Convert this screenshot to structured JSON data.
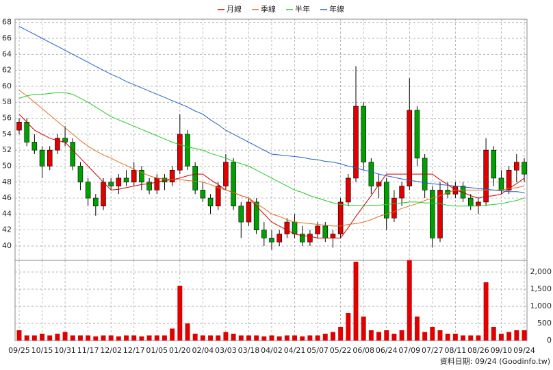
{
  "chart_data": {
    "type": "candlestick",
    "categories": [
      "09/25",
      null,
      null,
      "10/15",
      null,
      null,
      "10/31",
      null,
      null,
      "11/17",
      null,
      null,
      "12/02",
      null,
      null,
      "12/17",
      null,
      null,
      "01/05",
      null,
      null,
      "01/20",
      null,
      null,
      "02/04",
      null,
      null,
      "03/03",
      null,
      null,
      "03/18",
      null,
      null,
      "04/02",
      null,
      null,
      "04/21",
      null,
      null,
      "05/07",
      null,
      null,
      "05/22",
      null,
      null,
      "06/08",
      null,
      null,
      "06/24",
      null,
      null,
      "07/09",
      null,
      null,
      "07/27",
      null,
      null,
      "08/11",
      null,
      null,
      "08/26",
      null,
      null,
      "09/10",
      null,
      null,
      "09/24"
    ],
    "open": [
      54.5,
      55.5,
      53.0,
      52.0,
      50.0,
      52.0,
      53.5,
      53.0,
      50.0,
      48.0,
      46.0,
      45.0,
      48.0,
      47.5,
      48.5,
      48.0,
      49.5,
      48.0,
      47.0,
      48.5,
      48.0,
      49.5,
      54.0,
      50.0,
      47.0,
      46.0,
      45.0,
      47.5,
      50.5,
      45.0,
      43.0,
      45.5,
      42.0,
      41.0,
      40.5,
      41.5,
      43.0,
      41.5,
      40.5,
      41.5,
      42.5,
      41.0,
      41.5,
      45.5,
      48.5,
      57.5,
      50.5,
      47.5,
      48.0,
      43.5,
      46.0,
      47.5,
      57.0,
      51.0,
      47.0,
      41.0,
      47.0,
      46.5,
      47.5,
      46.0,
      45.0,
      45.5,
      52.0,
      48.5,
      47.0,
      49.5,
      50.5
    ],
    "high": [
      56.0,
      56.0,
      54.0,
      52.5,
      52.5,
      54.0,
      55.0,
      53.5,
      50.5,
      48.5,
      46.5,
      48.5,
      48.5,
      49.0,
      49.5,
      50.5,
      50.0,
      48.5,
      49.0,
      49.0,
      50.0,
      56.5,
      54.5,
      50.5,
      48.0,
      46.5,
      48.0,
      51.5,
      51.0,
      45.5,
      46.0,
      46.0,
      43.0,
      42.0,
      42.0,
      43.5,
      44.0,
      42.5,
      42.0,
      43.0,
      43.0,
      42.0,
      46.0,
      49.0,
      62.5,
      58.0,
      51.0,
      49.0,
      48.5,
      47.0,
      48.0,
      61.0,
      57.5,
      51.5,
      47.5,
      48.0,
      48.0,
      48.0,
      48.0,
      46.5,
      46.0,
      53.5,
      52.5,
      49.5,
      50.0,
      51.5,
      51.0
    ],
    "low": [
      54.0,
      52.5,
      51.5,
      48.5,
      49.5,
      51.5,
      52.5,
      49.5,
      47.0,
      45.0,
      43.8,
      44.5,
      47.0,
      46.5,
      47.5,
      47.5,
      47.0,
      46.5,
      46.5,
      47.0,
      47.5,
      49.0,
      49.5,
      46.5,
      45.5,
      44.0,
      44.5,
      47.0,
      44.5,
      41.0,
      42.5,
      41.5,
      40.0,
      39.5,
      40.0,
      41.0,
      41.0,
      40.0,
      40.0,
      41.0,
      40.5,
      39.8,
      41.0,
      45.0,
      48.0,
      49.5,
      46.5,
      46.0,
      42.0,
      43.0,
      45.0,
      47.0,
      50.0,
      46.0,
      39.8,
      40.5,
      46.0,
      46.0,
      45.5,
      44.5,
      44.0,
      45.0,
      47.5,
      46.5,
      46.5,
      48.0,
      48.0
    ],
    "close": [
      55.5,
      53.0,
      52.0,
      50.0,
      52.0,
      53.5,
      53.0,
      50.0,
      48.0,
      46.0,
      45.0,
      48.0,
      47.5,
      48.5,
      48.0,
      49.5,
      48.0,
      47.0,
      48.5,
      48.0,
      49.5,
      54.0,
      50.0,
      47.0,
      46.0,
      45.0,
      47.5,
      50.5,
      45.0,
      43.0,
      45.5,
      42.0,
      41.0,
      40.5,
      41.5,
      43.0,
      41.5,
      40.5,
      41.5,
      42.5,
      41.0,
      41.5,
      45.5,
      48.5,
      57.5,
      50.5,
      47.5,
      48.0,
      43.5,
      46.0,
      47.5,
      57.0,
      51.0,
      47.0,
      41.0,
      47.0,
      46.5,
      47.5,
      46.0,
      45.0,
      45.5,
      52.0,
      48.5,
      47.0,
      49.5,
      50.5,
      49.0
    ],
    "up_color": "#e00000",
    "down_color": "#00a000",
    "ylim": [
      38.2,
      68.4
    ],
    "yticks": [
      40,
      42,
      44,
      46,
      48,
      50,
      52,
      54,
      56,
      58,
      60,
      62,
      64,
      66,
      68
    ],
    "grid": true,
    "series": [
      {
        "name": "月線",
        "color": "#cc0000",
        "values": [
          56.5,
          55.5,
          54.5,
          54.0,
          53.5,
          53.2,
          53.0,
          52.0,
          51.0,
          50.0,
          49.0,
          48.0,
          47.0,
          47.1,
          47.3,
          47.5,
          47.7,
          47.8,
          48.0,
          48.2,
          48.3,
          48.5,
          48.8,
          49.0,
          49.0,
          48.3,
          47.7,
          47.0,
          46.7,
          46.3,
          46.0,
          45.0,
          44.0,
          43.0,
          42.5,
          42.0,
          41.5,
          41.3,
          41.2,
          41.0,
          41.0,
          41.0,
          41.0,
          42.3,
          43.7,
          45.0,
          46.3,
          47.7,
          49.0,
          49.0,
          49.0,
          49.0,
          49.0,
          49.0,
          49.0,
          48.3,
          47.7,
          47.0,
          46.7,
          46.3,
          46.0,
          46.2,
          46.3,
          46.5,
          47.2,
          47.8,
          48.5
        ]
      },
      {
        "name": "季線",
        "color": "#e07020",
        "values": [
          59.5,
          58.8,
          58.0,
          57.2,
          56.4,
          55.6,
          54.8,
          54.0,
          53.2,
          52.5,
          51.9,
          51.4,
          51.0,
          50.5,
          50.1,
          49.6,
          49.2,
          48.8,
          48.5,
          48.4,
          48.3,
          48.3,
          48.2,
          48.1,
          48.0,
          47.7,
          47.3,
          47.0,
          46.7,
          46.3,
          46.0,
          45.3,
          44.7,
          44.0,
          43.7,
          43.3,
          43.0,
          42.9,
          42.8,
          42.7,
          42.6,
          42.5,
          42.5,
          42.7,
          42.8,
          43.0,
          43.3,
          43.7,
          44.0,
          44.3,
          44.7,
          45.0,
          45.3,
          45.7,
          46.0,
          46.3,
          46.7,
          47.0,
          47.0,
          47.0,
          47.0,
          47.0,
          47.0,
          47.0,
          47.2,
          47.3,
          47.5
        ]
      },
      {
        "name": "半年",
        "color": "#22cc22",
        "values": [
          58.5,
          58.8,
          59.0,
          59.0,
          59.1,
          59.2,
          59.2,
          59.0,
          58.5,
          58.0,
          57.4,
          56.8,
          56.2,
          55.8,
          55.4,
          55.0,
          54.6,
          54.2,
          53.8,
          53.4,
          53.0,
          52.7,
          52.4,
          52.2,
          52.0,
          51.6,
          51.3,
          51.0,
          50.6,
          50.3,
          50.0,
          49.5,
          49.0,
          48.5,
          48.0,
          47.5,
          47.0,
          46.7,
          46.3,
          46.0,
          45.7,
          45.4,
          45.2,
          45.1,
          45.1,
          45.0,
          45.1,
          45.1,
          45.2,
          45.3,
          45.4,
          45.5,
          45.5,
          45.4,
          45.4,
          45.3,
          45.1,
          45.0,
          45.0,
          45.0,
          45.0,
          45.1,
          45.2,
          45.3,
          45.5,
          45.7,
          46.0
        ]
      },
      {
        "name": "年線",
        "color": "#2060d0",
        "values": [
          67.5,
          67.0,
          66.5,
          66.0,
          65.5,
          65.0,
          64.5,
          64.0,
          63.5,
          63.0,
          62.5,
          62.0,
          61.5,
          61.1,
          60.6,
          60.2,
          59.8,
          59.4,
          59.0,
          58.6,
          58.2,
          57.8,
          57.4,
          56.9,
          56.5,
          55.8,
          55.2,
          54.5,
          54.0,
          53.5,
          53.0,
          52.5,
          52.0,
          51.5,
          51.4,
          51.3,
          51.2,
          51.1,
          50.9,
          50.8,
          50.6,
          50.5,
          50.3,
          50.0,
          49.8,
          49.5,
          49.3,
          49.0,
          48.8,
          48.6,
          48.4,
          48.2,
          48.1,
          47.9,
          47.8,
          47.7,
          47.6,
          47.5,
          47.4,
          47.3,
          47.2,
          47.1,
          47.0,
          46.9,
          46.8,
          46.8,
          46.7
        ]
      }
    ],
    "legend": "top",
    "volume": {
      "color": "#e00000",
      "ylim": [
        0,
        2340
      ],
      "yticks": [
        0,
        500,
        {
          "value": 1000,
          "label": "1,000"
        },
        {
          "value": 1500,
          "label": "1,500"
        },
        {
          "value": 2000,
          "label": "2,000"
        }
      ],
      "values": [
        300,
        150,
        150,
        200,
        150,
        200,
        250,
        150,
        150,
        150,
        120,
        150,
        150,
        120,
        150,
        150,
        120,
        150,
        150,
        150,
        350,
        1600,
        500,
        200,
        150,
        150,
        150,
        250,
        200,
        150,
        150,
        150,
        120,
        150,
        120,
        150,
        150,
        120,
        150,
        150,
        200,
        250,
        400,
        800,
        2300,
        700,
        300,
        250,
        300,
        200,
        300,
        2350,
        700,
        250,
        400,
        300,
        200,
        200,
        150,
        150,
        150,
        1700,
        400,
        200,
        250,
        300,
        300
      ]
    },
    "footer": "資料日期: 09/24 (Goodinfo.tw)"
  }
}
